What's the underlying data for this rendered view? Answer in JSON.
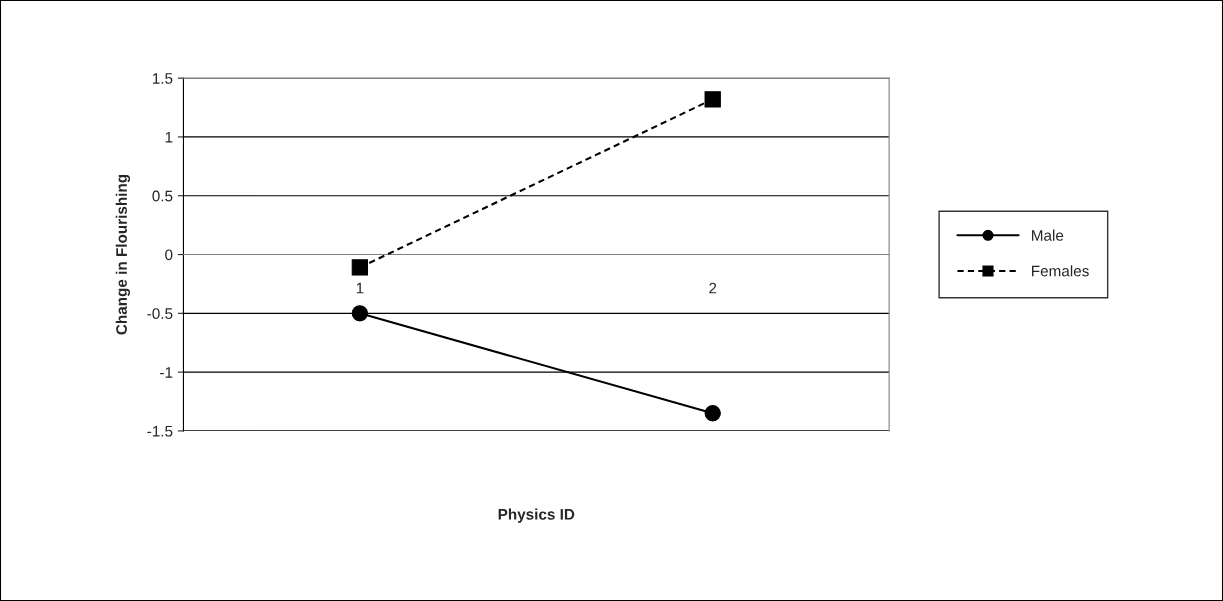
{
  "chart_data": {
    "type": "line",
    "xlabel": "Physics ID",
    "ylabel": "Change in Flourishing",
    "categories": [
      "1",
      "2"
    ],
    "series": [
      {
        "name": "Male",
        "color": "#000000",
        "values": [
          -0.5,
          -1.35
        ],
        "marker": "circle",
        "line_style": "solid"
      },
      {
        "name": "Females",
        "color": "#000000",
        "values": [
          -0.11,
          1.32
        ],
        "marker": "square",
        "line_style": "dashed"
      }
    ],
    "ylim": [
      -1.5,
      1.5
    ],
    "yticks": [
      -1.5,
      -1,
      -0.5,
      0,
      0.5,
      1,
      1.5
    ],
    "grid": "y",
    "legend": "right"
  }
}
